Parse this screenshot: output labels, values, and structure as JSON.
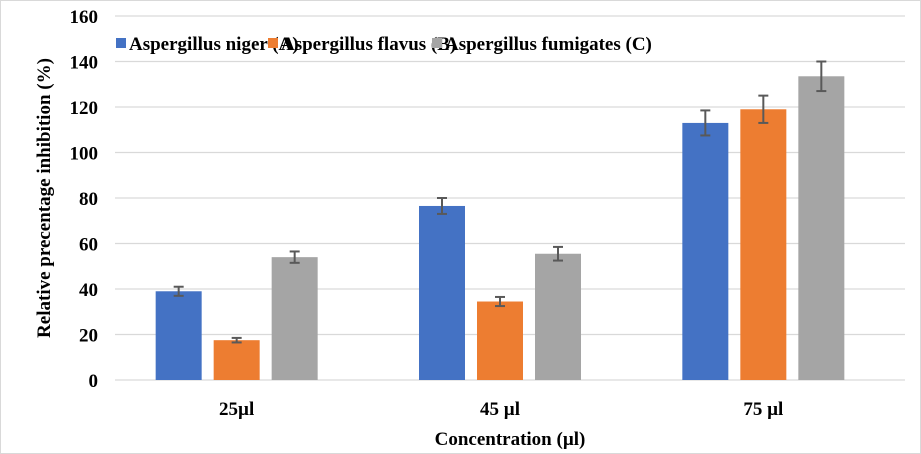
{
  "chart_data": {
    "type": "bar",
    "title": "",
    "xlabel": "Concentration (µl)",
    "ylabel": "Relative precentage inhibition  (%)",
    "ylim": [
      0,
      160
    ],
    "yticks": [
      0,
      20,
      40,
      60,
      80,
      100,
      120,
      140,
      160
    ],
    "grid": true,
    "legend_position": "top",
    "categories": [
      "25µl",
      "45 µl",
      "75 µl"
    ],
    "series": [
      {
        "name": "Aspergillus niger (A)",
        "color": "#4472c4",
        "values": [
          39,
          76.5,
          113
        ],
        "errors": [
          2,
          3.5,
          5.5
        ]
      },
      {
        "name": "Aspergillus flavus (B)",
        "color": "#ed7d31",
        "values": [
          17.5,
          34.5,
          119
        ],
        "errors": [
          1,
          2,
          6
        ]
      },
      {
        "name": "Aspergillus fumigates (C)",
        "color": "#a5a5a5",
        "values": [
          54,
          55.5,
          133.5
        ],
        "errors": [
          2.5,
          3,
          6.5
        ]
      }
    ]
  }
}
